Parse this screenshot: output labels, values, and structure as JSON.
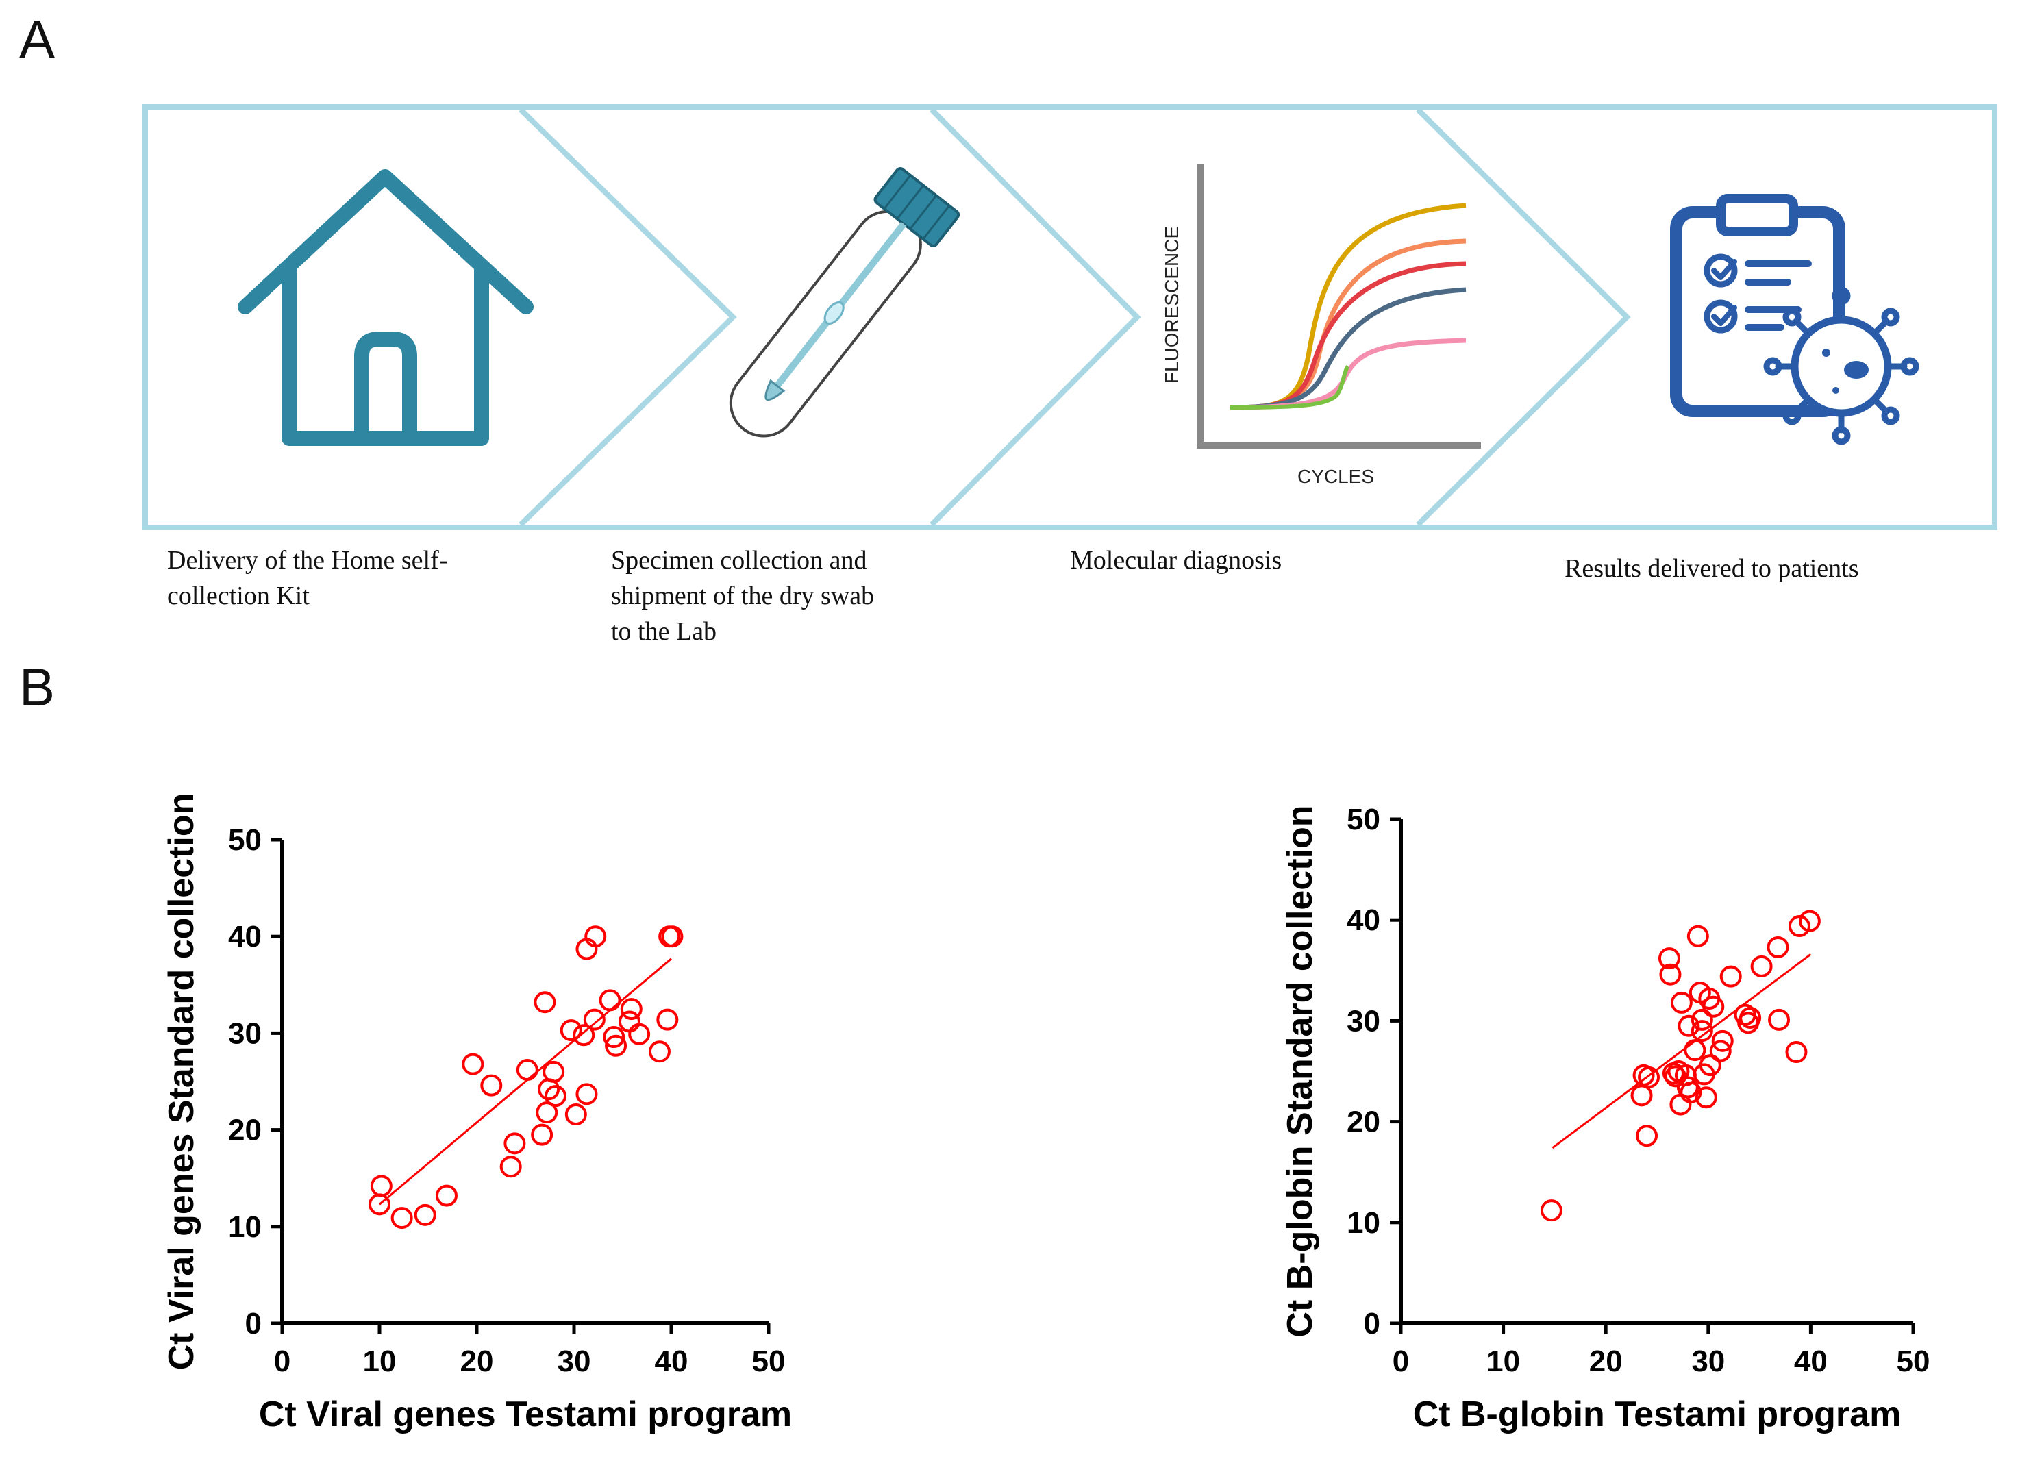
{
  "panel_labels": {
    "a": "A",
    "b": "B"
  },
  "workflow": {
    "steps": [
      {
        "icon": "house-icon",
        "caption_lines": [
          "Delivery of the Home self-",
          "collection Kit"
        ]
      },
      {
        "icon": "swab-tube-icon",
        "caption_lines": [
          "Specimen collection and",
          "shipment of the dry swab",
          "to the Lab"
        ]
      },
      {
        "icon": "pcr-curve-icon",
        "caption_lines": [
          "Molecular diagnosis"
        ]
      },
      {
        "icon": "clipboard-virus-icon",
        "caption_lines": [
          "Results delivered to patients"
        ]
      }
    ],
    "pcr_chart": {
      "ylabel": "FLUORESCENCE",
      "xlabel": "CYCLES"
    },
    "colors": {
      "chevron": "#a9d7e3",
      "icon_teal": "#2e86a0",
      "icon_blue": "#2a5ba8"
    }
  },
  "chart_data": [
    {
      "type": "scatter",
      "title": "",
      "xlabel": "Ct Viral genes Testami program",
      "ylabel": "Ct Viral genes Standard collection",
      "xlim": [
        0,
        50
      ],
      "ylim": [
        0,
        50
      ],
      "xticks": [
        0,
        10,
        20,
        30,
        40,
        50
      ],
      "yticks": [
        0,
        10,
        20,
        30,
        40,
        50
      ],
      "color": "#ff0000",
      "regression": {
        "x": [
          10,
          40
        ],
        "y": [
          12.3,
          37.7
        ]
      },
      "points": [
        [
          10.2,
          14.2
        ],
        [
          10.0,
          12.3
        ],
        [
          12.3,
          10.9
        ],
        [
          14.7,
          11.2
        ],
        [
          16.9,
          13.2
        ],
        [
          19.6,
          26.8
        ],
        [
          21.5,
          24.6
        ],
        [
          23.5,
          16.2
        ],
        [
          23.9,
          18.6
        ],
        [
          25.2,
          26.2
        ],
        [
          26.7,
          19.5
        ],
        [
          27.0,
          33.2
        ],
        [
          27.2,
          21.8
        ],
        [
          27.4,
          24.2
        ],
        [
          27.9,
          26.0
        ],
        [
          28.1,
          23.5
        ],
        [
          29.7,
          30.3
        ],
        [
          30.2,
          21.6
        ],
        [
          31.0,
          29.8
        ],
        [
          31.3,
          38.7
        ],
        [
          31.3,
          23.7
        ],
        [
          32.1,
          31.4
        ],
        [
          32.2,
          40.0
        ],
        [
          33.7,
          33.4
        ],
        [
          34.1,
          29.6
        ],
        [
          34.3,
          28.7
        ],
        [
          35.7,
          31.2
        ],
        [
          35.9,
          32.5
        ],
        [
          36.7,
          29.9
        ],
        [
          38.8,
          28.1
        ],
        [
          39.6,
          31.4
        ],
        [
          39.8,
          40.0
        ],
        [
          40.1,
          40.0
        ]
      ]
    },
    {
      "type": "scatter",
      "title": "",
      "xlabel": "Ct B-globin Testami program",
      "ylabel": "Ct B-globin Standard collection",
      "xlim": [
        0,
        50
      ],
      "ylim": [
        0,
        50
      ],
      "xticks": [
        0,
        10,
        20,
        30,
        40,
        50
      ],
      "yticks": [
        0,
        10,
        20,
        30,
        40,
        50
      ],
      "color": "#ff0000",
      "regression": {
        "x": [
          14.8,
          40
        ],
        "y": [
          17.4,
          36.6
        ]
      },
      "points": [
        [
          14.7,
          11.2
        ],
        [
          23.5,
          22.6
        ],
        [
          23.7,
          24.6
        ],
        [
          24.0,
          18.6
        ],
        [
          24.2,
          24.4
        ],
        [
          26.2,
          36.2
        ],
        [
          26.3,
          34.6
        ],
        [
          26.6,
          24.8
        ],
        [
          26.8,
          24.5
        ],
        [
          27.1,
          25.0
        ],
        [
          27.3,
          21.7
        ],
        [
          27.4,
          31.8
        ],
        [
          27.8,
          24.6
        ],
        [
          28.0,
          23.4
        ],
        [
          28.1,
          29.5
        ],
        [
          28.3,
          22.9
        ],
        [
          28.7,
          27.1
        ],
        [
          29.0,
          38.4
        ],
        [
          29.2,
          32.8
        ],
        [
          29.4,
          30.1
        ],
        [
          29.4,
          29.0
        ],
        [
          29.6,
          24.7
        ],
        [
          29.8,
          22.4
        ],
        [
          30.1,
          32.2
        ],
        [
          30.2,
          25.6
        ],
        [
          30.5,
          31.4
        ],
        [
          31.2,
          27.0
        ],
        [
          31.4,
          28.0
        ],
        [
          32.2,
          34.4
        ],
        [
          33.6,
          30.6
        ],
        [
          33.9,
          29.8
        ],
        [
          34.1,
          30.3
        ],
        [
          35.2,
          35.4
        ],
        [
          36.8,
          37.3
        ],
        [
          36.9,
          30.1
        ],
        [
          38.6,
          26.9
        ],
        [
          38.9,
          39.4
        ],
        [
          39.9,
          39.9
        ]
      ]
    }
  ]
}
